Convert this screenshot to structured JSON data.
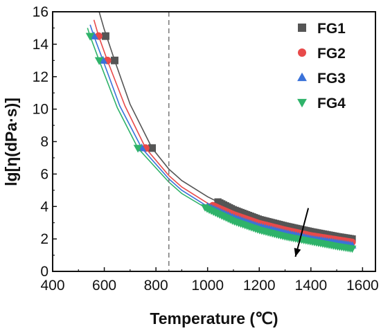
{
  "chart_data": {
    "type": "scatter",
    "title": "",
    "xlabel": "Temperature (℃)",
    "ylabel": "lg[η(dPa·s)]",
    "xlim": [
      400,
      1650
    ],
    "ylim": [
      0,
      16
    ],
    "xticks": [
      "400",
      "600",
      "800",
      "1000",
      "1200",
      "1400",
      "1600"
    ],
    "yticks": [
      "0",
      "2",
      "4",
      "6",
      "8",
      "10",
      "12",
      "14",
      "16"
    ],
    "grid": false,
    "legend_position": "top-right",
    "reference_line": {
      "x": 850,
      "style": "dashed"
    },
    "arrow": {
      "from": [
        1390,
        3.9
      ],
      "to": [
        1340,
        0.9
      ]
    },
    "series": [
      {
        "name": "FG1",
        "marker": "square",
        "color": "#555555",
        "points": [
          [
            605,
            14.5
          ],
          [
            640,
            13.0
          ],
          [
            785,
            7.6
          ]
        ],
        "band": {
          "x_start": 1040,
          "x_end": 1560,
          "y_start": 4.1,
          "y_end": 2.0
        },
        "fit": [
          [
            580,
            16.0
          ],
          [
            600,
            14.9
          ],
          [
            640,
            13.0
          ],
          [
            700,
            10.3
          ],
          [
            785,
            7.6
          ],
          [
            850,
            6.3
          ],
          [
            900,
            5.6
          ],
          [
            1000,
            4.6
          ],
          [
            1100,
            3.8
          ],
          [
            1200,
            3.2
          ],
          [
            1300,
            2.8
          ],
          [
            1400,
            2.45
          ],
          [
            1500,
            2.15
          ],
          [
            1560,
            2.0
          ]
        ]
      },
      {
        "name": "FG2",
        "marker": "circle",
        "color": "#e84a4a",
        "points": [
          [
            578,
            14.5
          ],
          [
            612,
            13.0
          ],
          [
            760,
            7.6
          ]
        ],
        "band": {
          "x_start": 1020,
          "x_end": 1560,
          "y_start": 4.0,
          "y_end": 1.8
        },
        "fit": [
          [
            560,
            15.5
          ],
          [
            578,
            14.5
          ],
          [
            612,
            13.0
          ],
          [
            680,
            10.2
          ],
          [
            760,
            7.6
          ],
          [
            850,
            5.9
          ],
          [
            900,
            5.2
          ],
          [
            1000,
            4.2
          ],
          [
            1100,
            3.5
          ],
          [
            1200,
            2.95
          ],
          [
            1300,
            2.55
          ],
          [
            1400,
            2.2
          ],
          [
            1500,
            1.95
          ],
          [
            1560,
            1.8
          ]
        ]
      },
      {
        "name": "FG3",
        "marker": "triangle-up",
        "color": "#3a72d9",
        "points": [
          [
            560,
            14.5
          ],
          [
            595,
            13.0
          ],
          [
            745,
            7.6
          ]
        ],
        "band": {
          "x_start": 1000,
          "x_end": 1560,
          "y_start": 4.0,
          "y_end": 1.6
        },
        "fit": [
          [
            545,
            15.2
          ],
          [
            560,
            14.5
          ],
          [
            595,
            13.0
          ],
          [
            660,
            10.2
          ],
          [
            745,
            7.6
          ],
          [
            850,
            5.7
          ],
          [
            900,
            5.0
          ],
          [
            1000,
            4.0
          ],
          [
            1100,
            3.3
          ],
          [
            1200,
            2.75
          ],
          [
            1300,
            2.35
          ],
          [
            1400,
            2.0
          ],
          [
            1500,
            1.75
          ],
          [
            1560,
            1.6
          ]
        ]
      },
      {
        "name": "FG4",
        "marker": "triangle-down",
        "color": "#2fb36a",
        "points": [
          [
            545,
            14.5
          ],
          [
            580,
            13.0
          ],
          [
            730,
            7.6
          ]
        ],
        "band": {
          "x_start": 990,
          "x_end": 1560,
          "y_start": 3.9,
          "y_end": 1.4
        },
        "fit": [
          [
            535,
            15.0
          ],
          [
            545,
            14.5
          ],
          [
            580,
            13.0
          ],
          [
            650,
            10.1
          ],
          [
            730,
            7.6
          ],
          [
            850,
            5.5
          ],
          [
            900,
            4.8
          ],
          [
            1000,
            3.85
          ],
          [
            1100,
            3.1
          ],
          [
            1200,
            2.55
          ],
          [
            1300,
            2.15
          ],
          [
            1400,
            1.85
          ],
          [
            1500,
            1.55
          ],
          [
            1560,
            1.4
          ]
        ]
      }
    ]
  }
}
